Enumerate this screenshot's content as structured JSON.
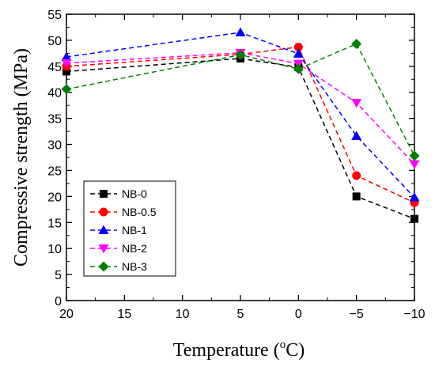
{
  "chart_data": {
    "type": "line",
    "x": [
      20,
      5,
      0,
      -5,
      -10
    ],
    "xticks": [
      "20",
      "15",
      "10",
      "5",
      "0",
      "−5",
      "−10"
    ],
    "xtick_values": [
      20,
      15,
      10,
      5,
      0,
      -5,
      -10
    ],
    "xlim": [
      20,
      -10
    ],
    "yticks": [
      "0",
      "5",
      "10",
      "15",
      "20",
      "25",
      "30",
      "35",
      "40",
      "45",
      "50",
      "55"
    ],
    "ytick_values": [
      0,
      5,
      10,
      15,
      20,
      25,
      30,
      35,
      40,
      45,
      50,
      55
    ],
    "ylim": [
      0,
      55
    ],
    "xlabel": "Temperature (",
    "xlabel_sup": "o",
    "xlabel_end": "C)",
    "ylabel": "Compressive strength (MPa)",
    "legend_position": "bottom-left",
    "grid": false,
    "series": [
      {
        "name": "NB-0",
        "color": "#000000",
        "marker": "square",
        "values": [
          44.0,
          46.5,
          44.8,
          20.0,
          15.7
        ]
      },
      {
        "name": "NB-0.5",
        "color": "#ff0000",
        "marker": "circle",
        "values": [
          45.0,
          47.3,
          48.7,
          24.0,
          18.8
        ]
      },
      {
        "name": "NB-1",
        "color": "#0000ff",
        "marker": "triangle-up",
        "values": [
          46.8,
          51.5,
          47.4,
          31.6,
          19.8
        ]
      },
      {
        "name": "NB-2",
        "color": "#ff00ff",
        "marker": "triangle-down",
        "values": [
          45.6,
          47.6,
          45.5,
          38.0,
          26.2
        ]
      },
      {
        "name": "NB-3",
        "color": "#008000",
        "marker": "diamond",
        "values": [
          40.6,
          47.2,
          44.5,
          49.3,
          27.8
        ]
      }
    ]
  }
}
